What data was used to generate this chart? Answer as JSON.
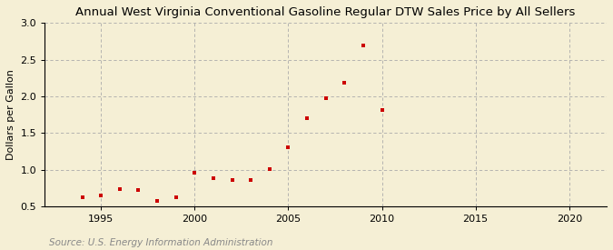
{
  "title": "Annual West Virginia Conventional Gasoline Regular DTW Sales Price by All Sellers",
  "ylabel": "Dollars per Gallon",
  "source": "Source: U.S. Energy Information Administration",
  "years": [
    1994,
    1995,
    1996,
    1997,
    1998,
    1999,
    2000,
    2001,
    2002,
    2003,
    2004,
    2005,
    2006,
    2007,
    2008,
    2009,
    2010
  ],
  "values": [
    0.62,
    0.65,
    0.73,
    0.72,
    0.57,
    0.63,
    0.96,
    0.88,
    0.86,
    0.86,
    1.01,
    1.3,
    1.7,
    1.97,
    2.18,
    2.69,
    1.81
  ],
  "marker_color": "#cc0000",
  "marker": "s",
  "marker_size": 3.5,
  "bg_color": "#f5efd5",
  "grid_color": "#aaaaaa",
  "xlim": [
    1992,
    2022
  ],
  "ylim": [
    0.5,
    3.0
  ],
  "xticks": [
    1995,
    2000,
    2005,
    2010,
    2015,
    2020
  ],
  "yticks": [
    0.5,
    1.0,
    1.5,
    2.0,
    2.5,
    3.0
  ],
  "title_fontsize": 9.5,
  "label_fontsize": 8,
  "tick_fontsize": 8,
  "source_fontsize": 7.5,
  "source_color": "#888888"
}
